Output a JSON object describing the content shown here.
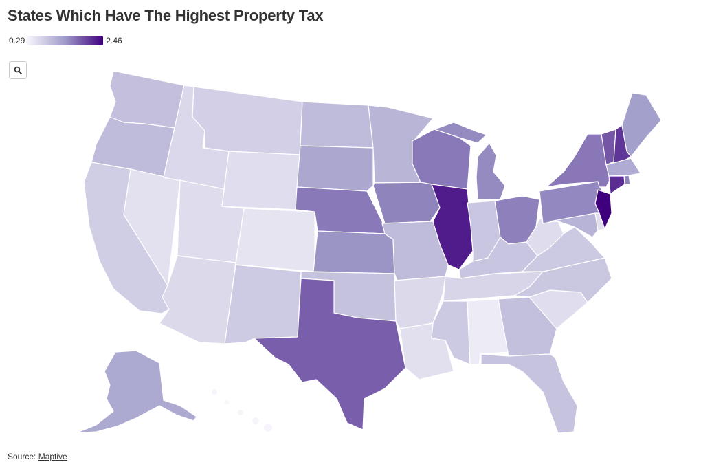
{
  "title": "States Which Have The Highest Property Tax",
  "legend": {
    "min_label": "0.29",
    "max_label": "2.46",
    "min": 0.29,
    "max": 2.46,
    "color_low": "#f7f5fb",
    "color_high": "#3f007d"
  },
  "search_button": {
    "icon": "magnifier-icon"
  },
  "source": {
    "prefix": "Source:",
    "link_text": "Maptive"
  },
  "map_data": {
    "metric": "property tax rate",
    "states": [
      {
        "id": "WA",
        "value": 0.93
      },
      {
        "id": "OR",
        "value": 0.97
      },
      {
        "id": "CA",
        "value": 0.76
      },
      {
        "id": "NV",
        "value": 0.53
      },
      {
        "id": "ID",
        "value": 0.63
      },
      {
        "id": "MT",
        "value": 0.74
      },
      {
        "id": "WY",
        "value": 0.57
      },
      {
        "id": "UT",
        "value": 0.58
      },
      {
        "id": "AZ",
        "value": 0.62
      },
      {
        "id": "CO",
        "value": 0.49
      },
      {
        "id": "NM",
        "value": 0.8
      },
      {
        "id": "ND",
        "value": 0.98
      },
      {
        "id": "SD",
        "value": 1.22
      },
      {
        "id": "NE",
        "value": 1.61
      },
      {
        "id": "KS",
        "value": 1.41
      },
      {
        "id": "OK",
        "value": 0.9
      },
      {
        "id": "TX",
        "value": 1.8
      },
      {
        "id": "MN",
        "value": 1.05
      },
      {
        "id": "IA",
        "value": 1.53
      },
      {
        "id": "MO",
        "value": 0.97
      },
      {
        "id": "AR",
        "value": 0.62
      },
      {
        "id": "LA",
        "value": 0.55
      },
      {
        "id": "WI",
        "value": 1.61
      },
      {
        "id": "IL",
        "value": 2.27
      },
      {
        "id": "MI",
        "value": 1.48
      },
      {
        "id": "IN",
        "value": 0.85
      },
      {
        "id": "OH",
        "value": 1.56
      },
      {
        "id": "KY",
        "value": 0.86
      },
      {
        "id": "TN",
        "value": 0.67
      },
      {
        "id": "MS",
        "value": 0.81
      },
      {
        "id": "AL",
        "value": 0.41
      },
      {
        "id": "GA",
        "value": 0.92
      },
      {
        "id": "FL",
        "value": 0.89
      },
      {
        "id": "SC",
        "value": 0.57
      },
      {
        "id": "NC",
        "value": 0.84
      },
      {
        "id": "VA",
        "value": 0.82
      },
      {
        "id": "WV",
        "value": 0.58
      },
      {
        "id": "PA",
        "value": 1.5
      },
      {
        "id": "NY",
        "value": 1.62
      },
      {
        "id": "VT",
        "value": 1.86
      },
      {
        "id": "NH",
        "value": 2.09
      },
      {
        "id": "ME",
        "value": 1.3
      },
      {
        "id": "MA",
        "value": 1.17
      },
      {
        "id": "RI",
        "value": 1.53
      },
      {
        "id": "CT",
        "value": 2.14
      },
      {
        "id": "NJ",
        "value": 2.46
      },
      {
        "id": "DE",
        "value": 0.56
      },
      {
        "id": "MD",
        "value": 1.06
      },
      {
        "id": "AK",
        "value": 1.19
      },
      {
        "id": "HI",
        "value": 0.29
      }
    ]
  }
}
